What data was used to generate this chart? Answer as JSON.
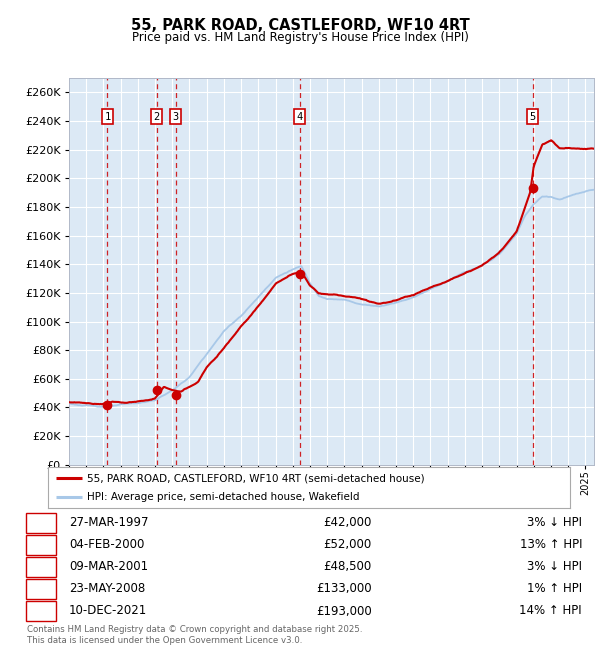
{
  "title": "55, PARK ROAD, CASTLEFORD, WF10 4RT",
  "subtitle": "Price paid vs. HM Land Registry's House Price Index (HPI)",
  "transactions": [
    {
      "num": 1,
      "date": "27-MAR-1997",
      "year": 1997.23,
      "price": 42000,
      "pct": "3%",
      "dir": "↓"
    },
    {
      "num": 2,
      "date": "04-FEB-2000",
      "year": 2000.09,
      "price": 52000,
      "pct": "13%",
      "dir": "↑"
    },
    {
      "num": 3,
      "date": "09-MAR-2001",
      "year": 2001.19,
      "price": 48500,
      "pct": "3%",
      "dir": "↓"
    },
    {
      "num": 4,
      "date": "23-MAY-2008",
      "year": 2008.4,
      "price": 133000,
      "pct": "1%",
      "dir": "↑"
    },
    {
      "num": 5,
      "date": "10-DEC-2021",
      "year": 2021.94,
      "price": 193000,
      "pct": "14%",
      "dir": "↑"
    }
  ],
  "hpi_line_color": "#a8c8e8",
  "price_line_color": "#cc0000",
  "dot_color": "#cc0000",
  "vline_color": "#cc0000",
  "plot_bg": "#dce9f5",
  "grid_color": "#ffffff",
  "ylim": [
    0,
    270000
  ],
  "yticks": [
    0,
    20000,
    40000,
    60000,
    80000,
    100000,
    120000,
    140000,
    160000,
    180000,
    200000,
    220000,
    240000,
    260000
  ],
  "legend_label_price": "55, PARK ROAD, CASTLEFORD, WF10 4RT (semi-detached house)",
  "legend_label_hpi": "HPI: Average price, semi-detached house, Wakefield",
  "footer": "Contains HM Land Registry data © Crown copyright and database right 2025.\nThis data is licensed under the Open Government Licence v3.0.",
  "table_rows": [
    [
      "1",
      "27-MAR-1997",
      "£42,000",
      "3% ↓ HPI"
    ],
    [
      "2",
      "04-FEB-2000",
      "£52,000",
      "13% ↑ HPI"
    ],
    [
      "3",
      "09-MAR-2001",
      "£48,500",
      "3% ↓ HPI"
    ],
    [
      "4",
      "23-MAY-2008",
      "£133,000",
      "1% ↑ HPI"
    ],
    [
      "5",
      "10-DEC-2021",
      "£193,000",
      "14% ↑ HPI"
    ]
  ],
  "hpi_anchors_x": [
    1995.0,
    1996.0,
    1997.0,
    1998.0,
    1999.0,
    2000.0,
    2001.0,
    2002.0,
    2003.0,
    2004.0,
    2005.0,
    2006.0,
    2007.0,
    2008.0,
    2008.5,
    2009.0,
    2009.5,
    2010.0,
    2011.0,
    2012.0,
    2013.0,
    2014.0,
    2015.0,
    2016.0,
    2017.0,
    2018.0,
    2019.0,
    2020.0,
    2021.0,
    2021.5,
    2022.0,
    2022.5,
    2023.0,
    2023.5,
    2024.0,
    2025.0,
    2025.5
  ],
  "hpi_anchors_y": [
    42000,
    40500,
    40000,
    41000,
    42000,
    44000,
    51000,
    60000,
    76000,
    92000,
    103000,
    116000,
    130000,
    136000,
    138000,
    126000,
    118000,
    116000,
    115000,
    112000,
    111000,
    114000,
    118000,
    124000,
    130000,
    136000,
    140000,
    148000,
    162000,
    175000,
    183000,
    188000,
    188000,
    186000,
    188000,
    191000,
    192000
  ],
  "price_anchors_x": [
    1995.0,
    1996.5,
    1997.0,
    1997.5,
    1998.5,
    1999.5,
    2000.0,
    2000.5,
    2001.0,
    2001.5,
    2002.5,
    2003.0,
    2004.0,
    2005.0,
    2006.0,
    2007.0,
    2008.0,
    2008.5,
    2009.0,
    2009.5,
    2010.0,
    2011.0,
    2012.0,
    2013.0,
    2014.0,
    2015.0,
    2016.0,
    2017.0,
    2018.0,
    2019.0,
    2020.0,
    2021.0,
    2021.8,
    2022.0,
    2022.5,
    2023.0,
    2023.5,
    2024.0,
    2025.0,
    2025.5
  ],
  "price_anchors_y": [
    42000,
    40500,
    41000,
    42500,
    42000,
    43000,
    44500,
    52000,
    50000,
    48500,
    55000,
    65000,
    80000,
    96000,
    110000,
    126000,
    133000,
    135000,
    125000,
    120000,
    119000,
    118000,
    116000,
    113000,
    116000,
    120000,
    126000,
    130000,
    136000,
    141000,
    150000,
    164000,
    192000,
    210000,
    225000,
    228000,
    222000,
    222000,
    222000,
    222000
  ]
}
